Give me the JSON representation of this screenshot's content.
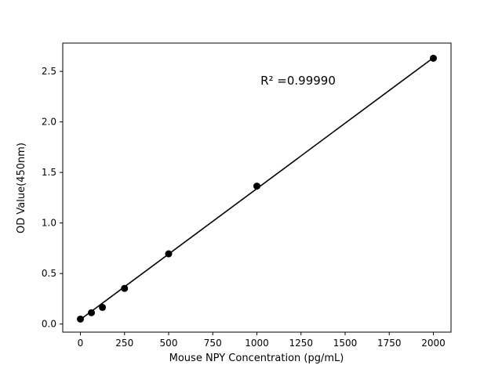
{
  "figure": {
    "background": "#ffffff"
  },
  "chart_data": {
    "type": "scatter",
    "title": "",
    "xlabel": "Mouse NPY Concentration (pg/mL)",
    "ylabel": "OD Value(450nm)",
    "annotation": "R² =0.99990",
    "x": [
      0,
      62.5,
      125,
      250,
      500,
      1000,
      2000
    ],
    "y": [
      0.049,
      0.112,
      0.165,
      0.353,
      0.695,
      1.365,
      2.63
    ],
    "fit_line": {
      "x": [
        0,
        2000
      ],
      "y": [
        0.045,
        2.635
      ]
    },
    "xlim": [
      -100,
      2100
    ],
    "ylim": [
      -0.08,
      2.78
    ],
    "xticks": [
      0,
      250,
      500,
      750,
      1000,
      1250,
      1500,
      1750,
      2000
    ],
    "xtick_labels": [
      "0",
      "250",
      "500",
      "750",
      "1000",
      "1250",
      "1500",
      "1750",
      "2000"
    ],
    "yticks": [
      0.0,
      0.5,
      1.0,
      1.5,
      2.0,
      2.5
    ],
    "ytick_labels": [
      "0.0",
      "0.5",
      "1.0",
      "1.5",
      "2.0",
      "2.5"
    ],
    "marker_color": "#000000",
    "line_color": "#000000",
    "axis_color": "#000000",
    "grid": false,
    "legend": "none"
  }
}
